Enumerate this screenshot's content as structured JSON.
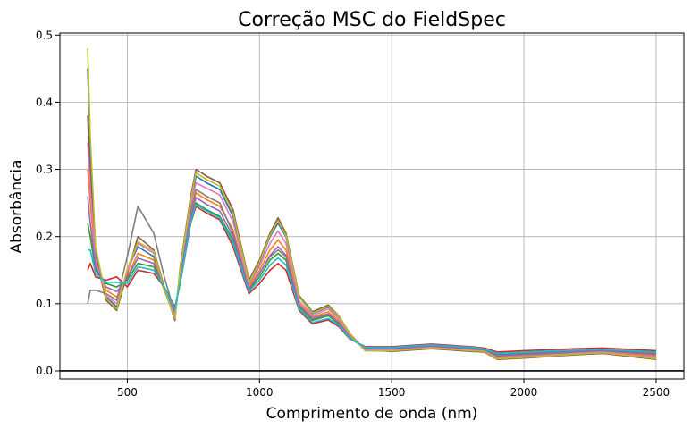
{
  "chart_data": {
    "type": "line",
    "title": "Correção MSC do FieldSpec",
    "xlabel": "Comprimento de onda (nm)",
    "ylabel": "Absorbância",
    "xlim": [
      245,
      2605
    ],
    "ylim": [
      -0.012,
      0.503
    ],
    "xticks": [
      500,
      1000,
      1500,
      2000,
      2500
    ],
    "xtick_labels": [
      "500",
      "1000",
      "1500",
      "2000",
      "2500"
    ],
    "yticks": [
      0.0,
      0.1,
      0.2,
      0.3,
      0.4,
      0.5
    ],
    "ytick_labels": [
      "0.0",
      "0.1",
      "0.2",
      "0.3",
      "0.4",
      "0.5"
    ],
    "grid": true,
    "legend": "none",
    "reference_line_y": 0.0,
    "x": [
      350,
      360,
      380,
      420,
      460,
      500,
      540,
      600,
      640,
      680,
      700,
      740,
      760,
      800,
      850,
      900,
      960,
      1000,
      1040,
      1070,
      1100,
      1150,
      1200,
      1260,
      1300,
      1340,
      1400,
      1500,
      1650,
      1800,
      1850,
      1900,
      2000,
      2200,
      2300,
      2500
    ],
    "series": [
      {
        "values": [
          0.45,
          0.33,
          0.18,
          0.11,
          0.095,
          0.15,
          0.185,
          0.17,
          0.12,
          0.08,
          0.15,
          0.25,
          0.29,
          0.28,
          0.27,
          0.23,
          0.13,
          0.16,
          0.2,
          0.22,
          0.2,
          0.11,
          0.085,
          0.095,
          0.08,
          0.055,
          0.03,
          0.03,
          0.034,
          0.03,
          0.029,
          0.018,
          0.02,
          0.025,
          0.027,
          0.018
        ]
      },
      {
        "values": [
          0.3,
          0.25,
          0.16,
          0.12,
          0.11,
          0.14,
          0.175,
          0.165,
          0.12,
          0.085,
          0.14,
          0.235,
          0.265,
          0.255,
          0.245,
          0.21,
          0.125,
          0.15,
          0.18,
          0.195,
          0.18,
          0.1,
          0.08,
          0.088,
          0.075,
          0.052,
          0.032,
          0.032,
          0.036,
          0.032,
          0.03,
          0.02,
          0.022,
          0.027,
          0.029,
          0.022
        ]
      },
      {
        "values": [
          0.22,
          0.2,
          0.15,
          0.13,
          0.125,
          0.135,
          0.16,
          0.155,
          0.125,
          0.09,
          0.135,
          0.225,
          0.25,
          0.24,
          0.23,
          0.195,
          0.12,
          0.14,
          0.165,
          0.175,
          0.165,
          0.095,
          0.075,
          0.082,
          0.07,
          0.05,
          0.034,
          0.034,
          0.038,
          0.034,
          0.032,
          0.024,
          0.026,
          0.03,
          0.031,
          0.026
        ]
      },
      {
        "values": [
          0.15,
          0.16,
          0.14,
          0.135,
          0.14,
          0.125,
          0.15,
          0.145,
          0.125,
          0.095,
          0.13,
          0.22,
          0.245,
          0.235,
          0.225,
          0.185,
          0.115,
          0.13,
          0.15,
          0.16,
          0.15,
          0.09,
          0.07,
          0.076,
          0.066,
          0.048,
          0.036,
          0.036,
          0.04,
          0.036,
          0.034,
          0.028,
          0.03,
          0.033,
          0.034,
          0.03
        ]
      },
      {
        "values": [
          0.1,
          0.12,
          0.12,
          0.115,
          0.105,
          0.17,
          0.245,
          0.205,
          0.14,
          0.085,
          0.145,
          0.24,
          0.27,
          0.26,
          0.25,
          0.205,
          0.122,
          0.145,
          0.17,
          0.18,
          0.17,
          0.098,
          0.078,
          0.085,
          0.072,
          0.051,
          0.033,
          0.033,
          0.037,
          0.033,
          0.031,
          0.022,
          0.024,
          0.028,
          0.03,
          0.024
        ]
      },
      {
        "values": [
          0.38,
          0.29,
          0.17,
          0.105,
          0.09,
          0.145,
          0.2,
          0.18,
          0.125,
          0.075,
          0.155,
          0.26,
          0.3,
          0.29,
          0.28,
          0.24,
          0.135,
          0.165,
          0.205,
          0.228,
          0.205,
          0.112,
          0.088,
          0.098,
          0.082,
          0.056,
          0.031,
          0.029,
          0.033,
          0.029,
          0.028,
          0.017,
          0.019,
          0.024,
          0.026,
          0.017
        ]
      },
      {
        "values": [
          0.34,
          0.27,
          0.165,
          0.112,
          0.1,
          0.148,
          0.19,
          0.175,
          0.122,
          0.082,
          0.148,
          0.248,
          0.28,
          0.272,
          0.262,
          0.222,
          0.128,
          0.156,
          0.19,
          0.208,
          0.19,
          0.104,
          0.082,
          0.092,
          0.078,
          0.054,
          0.031,
          0.031,
          0.035,
          0.031,
          0.03,
          0.019,
          0.021,
          0.026,
          0.028,
          0.02
        ]
      },
      {
        "values": [
          0.26,
          0.22,
          0.155,
          0.125,
          0.118,
          0.138,
          0.168,
          0.16,
          0.124,
          0.088,
          0.138,
          0.23,
          0.258,
          0.248,
          0.238,
          0.2,
          0.122,
          0.145,
          0.172,
          0.185,
          0.172,
          0.097,
          0.077,
          0.084,
          0.072,
          0.05,
          0.033,
          0.033,
          0.037,
          0.033,
          0.031,
          0.023,
          0.025,
          0.029,
          0.03,
          0.025
        ]
      },
      {
        "values": [
          0.48,
          0.35,
          0.185,
          0.108,
          0.092,
          0.152,
          0.192,
          0.178,
          0.122,
          0.078,
          0.152,
          0.255,
          0.295,
          0.285,
          0.275,
          0.235,
          0.132,
          0.162,
          0.202,
          0.224,
          0.202,
          0.11,
          0.086,
          0.096,
          0.081,
          0.055,
          0.03,
          0.03,
          0.034,
          0.03,
          0.029,
          0.018,
          0.02,
          0.025,
          0.027,
          0.018
        ]
      },
      {
        "values": [
          0.18,
          0.18,
          0.145,
          0.132,
          0.132,
          0.13,
          0.155,
          0.15,
          0.125,
          0.092,
          0.132,
          0.222,
          0.248,
          0.238,
          0.228,
          0.19,
          0.118,
          0.135,
          0.158,
          0.168,
          0.158,
          0.092,
          0.072,
          0.078,
          0.068,
          0.049,
          0.035,
          0.035,
          0.039,
          0.035,
          0.033,
          0.026,
          0.028,
          0.031,
          0.032,
          0.028
        ]
      }
    ]
  },
  "colors": [
    "#1f77b4",
    "#ff7f0e",
    "#2ca02c",
    "#d62728",
    "#7f7f7f",
    "#8c564b",
    "#e377c2",
    "#9467bd",
    "#bcbd22",
    "#17becf"
  ]
}
